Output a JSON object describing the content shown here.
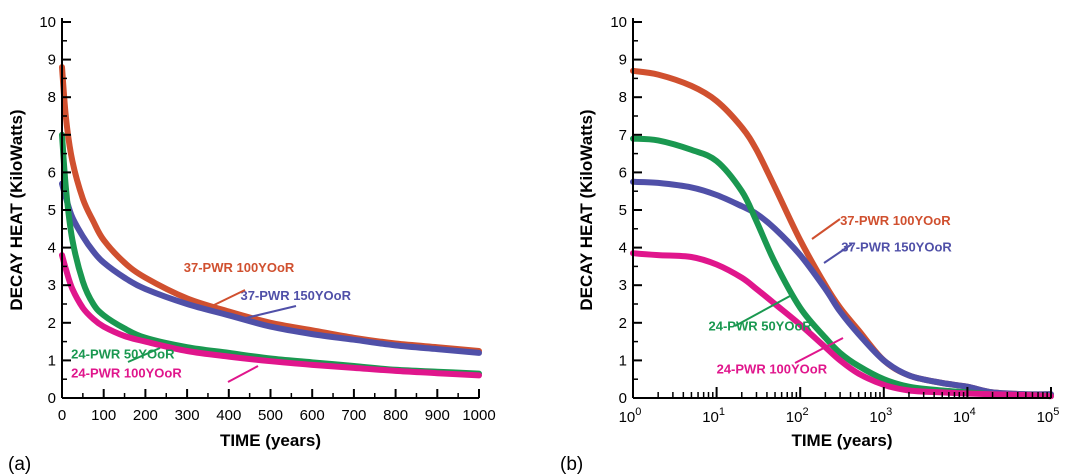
{
  "colors": {
    "red": "#d0502f",
    "blue": "#5050a8",
    "green": "#1a9850",
    "magenta": "#e0168c",
    "axis": "#000000"
  },
  "chart_data": [
    {
      "type": "line",
      "panel_label": "(a)",
      "xlabel": "TIME (years)",
      "ylabel": "DECAY HEAT (KiloWatts)",
      "xscale": "linear",
      "xlim": [
        0,
        1000
      ],
      "ylim": [
        0,
        10
      ],
      "xticks": [
        0,
        100,
        200,
        300,
        400,
        500,
        600,
        700,
        800,
        900,
        1000
      ],
      "xtick_labels": [
        "0",
        "100",
        "200",
        "300",
        "400",
        "500",
        "600",
        "700",
        "800",
        "900",
        "1000"
      ],
      "yticks": [
        0,
        1,
        2,
        3,
        4,
        5,
        6,
        7,
        8,
        9,
        10
      ],
      "ytick_labels": [
        "0",
        "1",
        "2",
        "3",
        "4",
        "5",
        "6",
        "7",
        "8",
        "9",
        "10"
      ],
      "series": [
        {
          "name": "37-PWR 100YOoR",
          "color": "#d0502f",
          "x": [
            0,
            10,
            25,
            50,
            75,
            100,
            150,
            200,
            300,
            400,
            500,
            600,
            700,
            800,
            900,
            1000
          ],
          "y": [
            8.8,
            7.4,
            6.3,
            5.3,
            4.7,
            4.2,
            3.6,
            3.2,
            2.65,
            2.3,
            2.0,
            1.8,
            1.6,
            1.45,
            1.35,
            1.25
          ]
        },
        {
          "name": "37-PWR 150YOoR",
          "color": "#5050a8",
          "x": [
            0,
            10,
            25,
            50,
            75,
            100,
            150,
            200,
            300,
            400,
            500,
            600,
            700,
            800,
            900,
            1000
          ],
          "y": [
            5.7,
            5.3,
            4.8,
            4.3,
            3.9,
            3.6,
            3.2,
            2.9,
            2.5,
            2.2,
            1.9,
            1.7,
            1.55,
            1.4,
            1.3,
            1.2
          ]
        },
        {
          "name": "24-PWR 50YOoR",
          "color": "#1a9850",
          "x": [
            0,
            10,
            25,
            50,
            75,
            100,
            150,
            200,
            300,
            400,
            500,
            600,
            700,
            800,
            900,
            1000
          ],
          "y": [
            7.0,
            5.5,
            4.2,
            3.1,
            2.5,
            2.2,
            1.85,
            1.6,
            1.35,
            1.2,
            1.05,
            0.95,
            0.85,
            0.75,
            0.7,
            0.65
          ]
        },
        {
          "name": "24-PWR 100YOoR",
          "color": "#e0168c",
          "x": [
            0,
            10,
            25,
            50,
            75,
            100,
            150,
            200,
            300,
            400,
            500,
            600,
            700,
            800,
            900,
            1000
          ],
          "y": [
            3.8,
            3.4,
            2.9,
            2.4,
            2.1,
            1.9,
            1.65,
            1.5,
            1.25,
            1.1,
            0.98,
            0.88,
            0.8,
            0.72,
            0.66,
            0.6
          ]
        }
      ],
      "annotations": [
        {
          "text": "37-PWR 100YOoR",
          "color": "#d0502f",
          "at": [
            292,
            3.35
          ]
        },
        {
          "text": "37-PWR 150YOoR",
          "color": "#5050a8",
          "at": [
            428,
            2.6
          ]
        },
        {
          "text": "24-PWR 50YOoR",
          "color": "#1a9850",
          "at": [
            22,
            1.05
          ]
        },
        {
          "text": "24-PWR 100YOoR",
          "color": "#e0168c",
          "at": [
            22,
            0.55
          ]
        }
      ]
    },
    {
      "type": "line",
      "panel_label": "(b)",
      "xlabel": "TIME (years)",
      "ylabel": "DECAY HEAT (KiloWatts)",
      "xscale": "log",
      "xlim": [
        1,
        100000
      ],
      "ylim": [
        0,
        10
      ],
      "xticks": [
        1,
        10,
        100,
        1000,
        10000,
        100000
      ],
      "xtick_labels": [
        {
          "base": "10",
          "exp": "0"
        },
        {
          "base": "10",
          "exp": "1"
        },
        {
          "base": "10",
          "exp": "2"
        },
        {
          "base": "10",
          "exp": "3"
        },
        {
          "base": "10",
          "exp": "4"
        },
        {
          "base": "10",
          "exp": "5"
        }
      ],
      "yticks": [
        0,
        1,
        2,
        3,
        4,
        5,
        6,
        7,
        8,
        9,
        10
      ],
      "ytick_labels": [
        "0",
        "1",
        "2",
        "3",
        "4",
        "5",
        "6",
        "7",
        "8",
        "9",
        "10"
      ],
      "series": [
        {
          "name": "37-PWR 100YOoR",
          "color": "#d0502f",
          "x": [
            1,
            2,
            5,
            10,
            20,
            30,
            50,
            100,
            200,
            300,
            500,
            1000,
            2000,
            5000,
            10000,
            20000,
            50000,
            100000
          ],
          "y": [
            8.7,
            8.6,
            8.3,
            7.9,
            7.2,
            6.6,
            5.6,
            4.2,
            3.0,
            2.4,
            1.8,
            1.0,
            0.6,
            0.4,
            0.3,
            0.15,
            0.1,
            0.1
          ]
        },
        {
          "name": "37-PWR 150YOoR",
          "color": "#5050a8",
          "x": [
            1,
            2,
            5,
            10,
            20,
            30,
            50,
            100,
            200,
            300,
            500,
            1000,
            2000,
            5000,
            10000,
            20000,
            50000,
            100000
          ],
          "y": [
            5.75,
            5.72,
            5.6,
            5.4,
            5.1,
            4.9,
            4.5,
            3.8,
            2.9,
            2.3,
            1.7,
            1.0,
            0.6,
            0.4,
            0.3,
            0.15,
            0.1,
            0.1
          ]
        },
        {
          "name": "24-PWR 50YOoR",
          "color": "#1a9850",
          "x": [
            1,
            2,
            5,
            10,
            20,
            30,
            50,
            100,
            200,
            300,
            500,
            1000,
            2000,
            5000,
            10000,
            20000,
            50000,
            100000
          ],
          "y": [
            6.9,
            6.85,
            6.6,
            6.3,
            5.5,
            4.7,
            3.6,
            2.4,
            1.6,
            1.2,
            0.85,
            0.5,
            0.3,
            0.2,
            0.15,
            0.1,
            0.08,
            0.05
          ]
        },
        {
          "name": "24-PWR 100YOoR",
          "color": "#e0168c",
          "x": [
            1,
            2,
            5,
            10,
            20,
            30,
            50,
            100,
            200,
            300,
            500,
            1000,
            2000,
            5000,
            10000,
            20000,
            50000,
            100000
          ],
          "y": [
            3.85,
            3.8,
            3.75,
            3.55,
            3.2,
            2.9,
            2.5,
            1.95,
            1.35,
            1.0,
            0.65,
            0.35,
            0.2,
            0.15,
            0.12,
            0.1,
            0.08,
            0.05
          ]
        }
      ],
      "annotations": [
        {
          "text": "37-PWR 100YOoR",
          "color": "#d0502f",
          "at": [
            300,
            4.6
          ]
        },
        {
          "text": "37-PWR 150YOoR",
          "color": "#5050a8",
          "at": [
            310,
            3.9
          ]
        },
        {
          "text": "24-PWR 50YOoR",
          "color": "#1a9850",
          "at": [
            8,
            1.8
          ]
        },
        {
          "text": "24-PWR 100YOoR",
          "color": "#e0168c",
          "at": [
            10,
            0.65
          ]
        }
      ]
    }
  ]
}
